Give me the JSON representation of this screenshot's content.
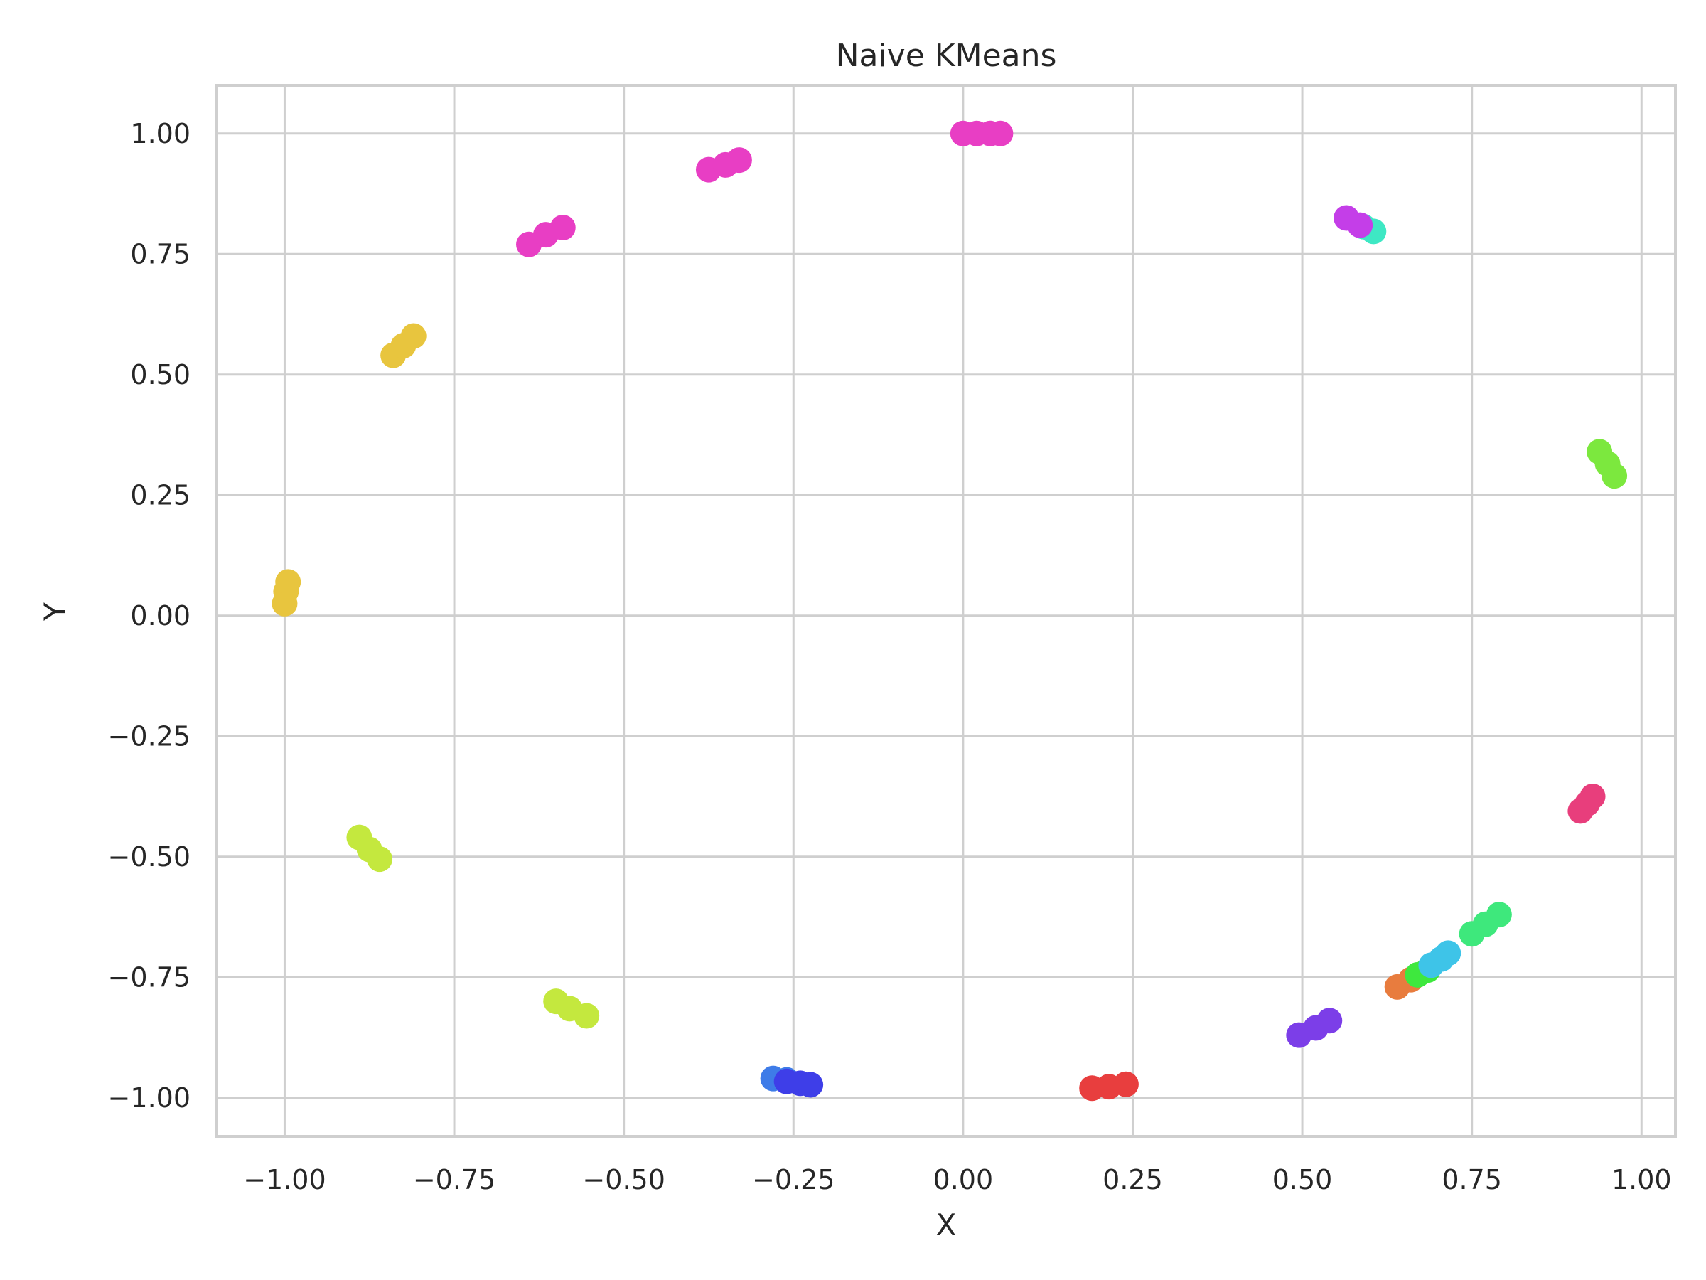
{
  "chart_data": {
    "type": "scatter",
    "title": "Naive KMeans",
    "xlabel": "X",
    "ylabel": "Y",
    "xlim": [
      -1.1,
      1.05
    ],
    "ylim": [
      -1.08,
      1.1
    ],
    "grid": true,
    "x_ticks": [
      -1.0,
      -0.75,
      -0.5,
      -0.25,
      0.0,
      0.25,
      0.5,
      0.75,
      1.0
    ],
    "y_ticks": [
      -1.0,
      -0.75,
      -0.5,
      -0.25,
      0.0,
      0.25,
      0.5,
      0.75,
      1.0
    ],
    "x_tick_labels": [
      "−1.00",
      "−0.75",
      "−0.50",
      "−0.25",
      "0.00",
      "0.25",
      "0.50",
      "0.75",
      "1.00"
    ],
    "y_tick_labels": [
      "−1.00",
      "−0.75",
      "−0.50",
      "−0.25",
      "0.00",
      "0.25",
      "0.50",
      "0.75",
      "1.00"
    ],
    "clusters": [
      {
        "color": "#e83ec4",
        "points": [
          [
            0.0,
            1.0
          ],
          [
            0.02,
            1.0
          ],
          [
            0.04,
            1.0
          ],
          [
            0.055,
            1.0
          ]
        ]
      },
      {
        "color": "#e83ec4",
        "points": [
          [
            -0.375,
            0.925
          ],
          [
            -0.35,
            0.935
          ],
          [
            -0.33,
            0.945
          ]
        ]
      },
      {
        "color": "#e83ec4",
        "points": [
          [
            -0.64,
            0.77
          ],
          [
            -0.615,
            0.79
          ],
          [
            -0.59,
            0.805
          ]
        ]
      },
      {
        "color": "#e8c53e",
        "points": [
          [
            -0.84,
            0.54
          ],
          [
            -0.825,
            0.56
          ],
          [
            -0.81,
            0.58
          ]
        ]
      },
      {
        "color": "#e8c53e",
        "points": [
          [
            -1.0,
            0.025
          ],
          [
            -0.998,
            0.05
          ],
          [
            -0.995,
            0.07
          ]
        ]
      },
      {
        "color": "#c4e83e",
        "points": [
          [
            -0.89,
            -0.46
          ],
          [
            -0.875,
            -0.485
          ],
          [
            -0.86,
            -0.505
          ]
        ]
      },
      {
        "color": "#c4e83e",
        "points": [
          [
            -0.6,
            -0.8
          ],
          [
            -0.58,
            -0.815
          ],
          [
            -0.555,
            -0.83
          ]
        ]
      },
      {
        "color": "#3e7ce8",
        "points": [
          [
            -0.28,
            -0.96
          ],
          [
            -0.26,
            -0.963
          ]
        ]
      },
      {
        "color": "#3e3ee8",
        "points": [
          [
            -0.26,
            -0.966
          ],
          [
            -0.24,
            -0.97
          ],
          [
            -0.225,
            -0.973
          ]
        ]
      },
      {
        "color": "#e83e3e",
        "points": [
          [
            0.19,
            -0.98
          ],
          [
            0.215,
            -0.977
          ],
          [
            0.24,
            -0.972
          ]
        ]
      },
      {
        "color": "#7c3ee8",
        "points": [
          [
            0.495,
            -0.87
          ],
          [
            0.52,
            -0.855
          ],
          [
            0.54,
            -0.84
          ]
        ]
      },
      {
        "color": "#e87c3e",
        "points": [
          [
            0.64,
            -0.77
          ],
          [
            0.66,
            -0.755
          ]
        ]
      },
      {
        "color": "#3ee83e",
        "points": [
          [
            0.67,
            -0.745
          ],
          [
            0.685,
            -0.735
          ]
        ]
      },
      {
        "color": "#3ec4e8",
        "points": [
          [
            0.69,
            -0.725
          ],
          [
            0.705,
            -0.712
          ],
          [
            0.715,
            -0.7
          ]
        ]
      },
      {
        "color": "#3ee87c",
        "points": [
          [
            0.75,
            -0.66
          ],
          [
            0.77,
            -0.64
          ],
          [
            0.79,
            -0.62
          ]
        ]
      },
      {
        "color": "#e83e7c",
        "points": [
          [
            0.91,
            -0.405
          ],
          [
            0.92,
            -0.39
          ],
          [
            0.928,
            -0.375
          ]
        ]
      },
      {
        "color": "#7ce83e",
        "points": [
          [
            0.938,
            0.34
          ],
          [
            0.95,
            0.315
          ],
          [
            0.96,
            0.29
          ]
        ]
      },
      {
        "color": "#3ee8c4",
        "points": [
          [
            0.59,
            0.807
          ],
          [
            0.605,
            0.797
          ]
        ]
      },
      {
        "color": "#c43ee8",
        "points": [
          [
            0.565,
            0.825
          ],
          [
            0.585,
            0.81
          ]
        ]
      }
    ]
  }
}
